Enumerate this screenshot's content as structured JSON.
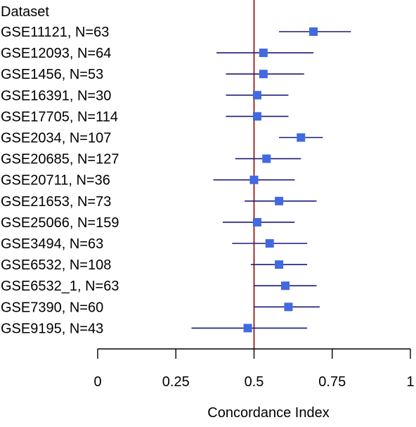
{
  "chart_data": {
    "type": "forest",
    "header": "Dataset",
    "xlabel": "Concordance Index",
    "xlim": [
      0,
      1
    ],
    "xticks": [
      0,
      0.25,
      0.5,
      0.75,
      1
    ],
    "xtick_labels": [
      "0",
      "0.25",
      "0.5",
      "0.75",
      "1"
    ],
    "reference_line": 0.5,
    "colors": {
      "marker": "#4169E1",
      "interval": "#1a1a7a",
      "reference": "#8B0000",
      "axis": "#000000"
    },
    "rows": [
      {
        "label": "GSE11121, N=63",
        "estimate": 0.69,
        "lower": 0.58,
        "upper": 0.81
      },
      {
        "label": "GSE12093, N=64",
        "estimate": 0.53,
        "lower": 0.38,
        "upper": 0.69
      },
      {
        "label": "GSE1456, N=53",
        "estimate": 0.53,
        "lower": 0.41,
        "upper": 0.66
      },
      {
        "label": "GSE16391, N=30",
        "estimate": 0.51,
        "lower": 0.41,
        "upper": 0.61
      },
      {
        "label": "GSE17705, N=114",
        "estimate": 0.51,
        "lower": 0.41,
        "upper": 0.61
      },
      {
        "label": "GSE2034, N=107",
        "estimate": 0.65,
        "lower": 0.58,
        "upper": 0.72
      },
      {
        "label": "GSE20685, N=127",
        "estimate": 0.54,
        "lower": 0.44,
        "upper": 0.65
      },
      {
        "label": "GSE20711, N=36",
        "estimate": 0.5,
        "lower": 0.37,
        "upper": 0.63
      },
      {
        "label": "GSE21653, N=73",
        "estimate": 0.58,
        "lower": 0.47,
        "upper": 0.7
      },
      {
        "label": "GSE25066, N=159",
        "estimate": 0.51,
        "lower": 0.4,
        "upper": 0.63
      },
      {
        "label": "GSE3494, N=63",
        "estimate": 0.55,
        "lower": 0.43,
        "upper": 0.67
      },
      {
        "label": "GSE6532, N=108",
        "estimate": 0.58,
        "lower": 0.49,
        "upper": 0.67
      },
      {
        "label": "GSE6532_1, N=63",
        "estimate": 0.6,
        "lower": 0.5,
        "upper": 0.7
      },
      {
        "label": "GSE7390, N=60",
        "estimate": 0.61,
        "lower": 0.5,
        "upper": 0.71
      },
      {
        "label": "GSE9195, N=43",
        "estimate": 0.48,
        "lower": 0.3,
        "upper": 0.67
      }
    ]
  }
}
